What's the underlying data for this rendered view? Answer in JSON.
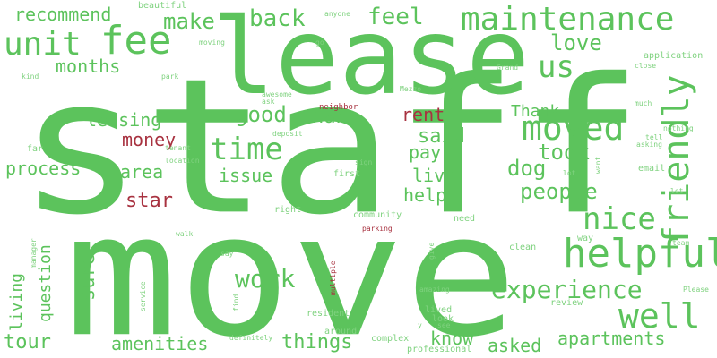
{
  "colors": {
    "green": "#5cc35c",
    "light_green": "#7fd27f",
    "red": "#a83240",
    "background": "#ffffff"
  },
  "words": [
    {
      "text": "staff",
      "color": "green"
    },
    {
      "text": "move",
      "color": "green"
    },
    {
      "text": "lease",
      "color": "green"
    },
    {
      "text": "maintenance",
      "color": "green"
    },
    {
      "text": "unit",
      "color": "green"
    },
    {
      "text": "fee",
      "color": "green"
    },
    {
      "text": "helpful",
      "color": "green"
    },
    {
      "text": "friendly",
      "color": "green"
    },
    {
      "text": "moved",
      "color": "green"
    },
    {
      "text": "time",
      "color": "green"
    },
    {
      "text": "nice",
      "color": "green"
    },
    {
      "text": "well",
      "color": "green"
    },
    {
      "text": "us",
      "color": "green"
    },
    {
      "text": "work",
      "color": "green"
    },
    {
      "text": "experience",
      "color": "green"
    },
    {
      "text": "back",
      "color": "green"
    },
    {
      "text": "feel",
      "color": "green"
    },
    {
      "text": "make",
      "color": "green"
    },
    {
      "text": "recommend",
      "color": "green"
    },
    {
      "text": "love",
      "color": "green"
    },
    {
      "text": "months",
      "color": "green"
    },
    {
      "text": "good",
      "color": "green"
    },
    {
      "text": "leasing",
      "color": "green"
    },
    {
      "text": "nan",
      "color": "green"
    },
    {
      "text": "rent",
      "color": "red"
    },
    {
      "text": "Thank",
      "color": "green"
    },
    {
      "text": "money",
      "color": "red"
    },
    {
      "text": "said",
      "color": "green"
    },
    {
      "text": "took",
      "color": "green"
    },
    {
      "text": "pay",
      "color": "green"
    },
    {
      "text": "dog",
      "color": "green"
    },
    {
      "text": "process",
      "color": "green"
    },
    {
      "text": "area",
      "color": "green"
    },
    {
      "text": "issue",
      "color": "green"
    },
    {
      "text": "live",
      "color": "green"
    },
    {
      "text": "people",
      "color": "green"
    },
    {
      "text": "help",
      "color": "green"
    },
    {
      "text": "star",
      "color": "red"
    },
    {
      "text": "living",
      "color": "green"
    },
    {
      "text": "question",
      "color": "green"
    },
    {
      "text": "sure",
      "color": "green"
    },
    {
      "text": "tour",
      "color": "green"
    },
    {
      "text": "amenities",
      "color": "green"
    },
    {
      "text": "things",
      "color": "green"
    },
    {
      "text": "know",
      "color": "green"
    },
    {
      "text": "asked",
      "color": "green"
    },
    {
      "text": "apartments",
      "color": "green"
    },
    {
      "text": "beautiful",
      "color": "light_green"
    },
    {
      "text": "anyone",
      "color": "light_green"
    },
    {
      "text": "moving",
      "color": "light_green"
    },
    {
      "text": "go",
      "color": "light_green"
    },
    {
      "text": "application",
      "color": "light_green"
    },
    {
      "text": "Grand",
      "color": "light_green"
    },
    {
      "text": "close",
      "color": "light_green"
    },
    {
      "text": "kind",
      "color": "light_green"
    },
    {
      "text": "park",
      "color": "light_green"
    },
    {
      "text": "awesome",
      "color": "light_green"
    },
    {
      "text": "ask",
      "color": "light_green"
    },
    {
      "text": "neighbor",
      "color": "red"
    },
    {
      "text": "Mezzo",
      "color": "light_green"
    },
    {
      "text": "much",
      "color": "light_green"
    },
    {
      "text": "nothing",
      "color": "light_green"
    },
    {
      "text": "tell",
      "color": "light_green"
    },
    {
      "text": "asking",
      "color": "light_green"
    },
    {
      "text": "deposit",
      "color": "light_green"
    },
    {
      "text": "far",
      "color": "light_green"
    },
    {
      "text": "tenant",
      "color": "light_green"
    },
    {
      "text": "location",
      "color": "light_green"
    },
    {
      "text": "sign",
      "color": "light_green"
    },
    {
      "text": "first",
      "color": "light_green"
    },
    {
      "text": "lot",
      "color": "light_green"
    },
    {
      "text": "want",
      "color": "light_green"
    },
    {
      "text": "email",
      "color": "light_green"
    },
    {
      "text": "let",
      "color": "light_green"
    },
    {
      "text": "right",
      "color": "light_green"
    },
    {
      "text": "community",
      "color": "light_green"
    },
    {
      "text": "need",
      "color": "light_green"
    },
    {
      "text": "manager",
      "color": "light_green"
    },
    {
      "text": "walk",
      "color": "light_green"
    },
    {
      "text": "parking",
      "color": "red"
    },
    {
      "text": "give",
      "color": "light_green"
    },
    {
      "text": "way",
      "color": "light_green"
    },
    {
      "text": "team",
      "color": "light_green"
    },
    {
      "text": "say",
      "color": "light_green"
    },
    {
      "text": "clean",
      "color": "light_green"
    },
    {
      "text": "service",
      "color": "light_green"
    },
    {
      "text": "multiple",
      "color": "red"
    },
    {
      "text": "find",
      "color": "light_green"
    },
    {
      "text": "amazing",
      "color": "light_green"
    },
    {
      "text": "review",
      "color": "light_green"
    },
    {
      "text": "Please",
      "color": "light_green"
    },
    {
      "text": "resident",
      "color": "light_green"
    },
    {
      "text": "lived",
      "color": "light_green"
    },
    {
      "text": "look",
      "color": "light_green"
    },
    {
      "text": "see",
      "color": "light_green"
    },
    {
      "text": "y",
      "color": "light_green"
    },
    {
      "text": "around",
      "color": "light_green"
    },
    {
      "text": "complex",
      "color": "light_green"
    },
    {
      "text": "definitely",
      "color": "light_green"
    },
    {
      "text": "professional",
      "color": "light_green"
    }
  ]
}
